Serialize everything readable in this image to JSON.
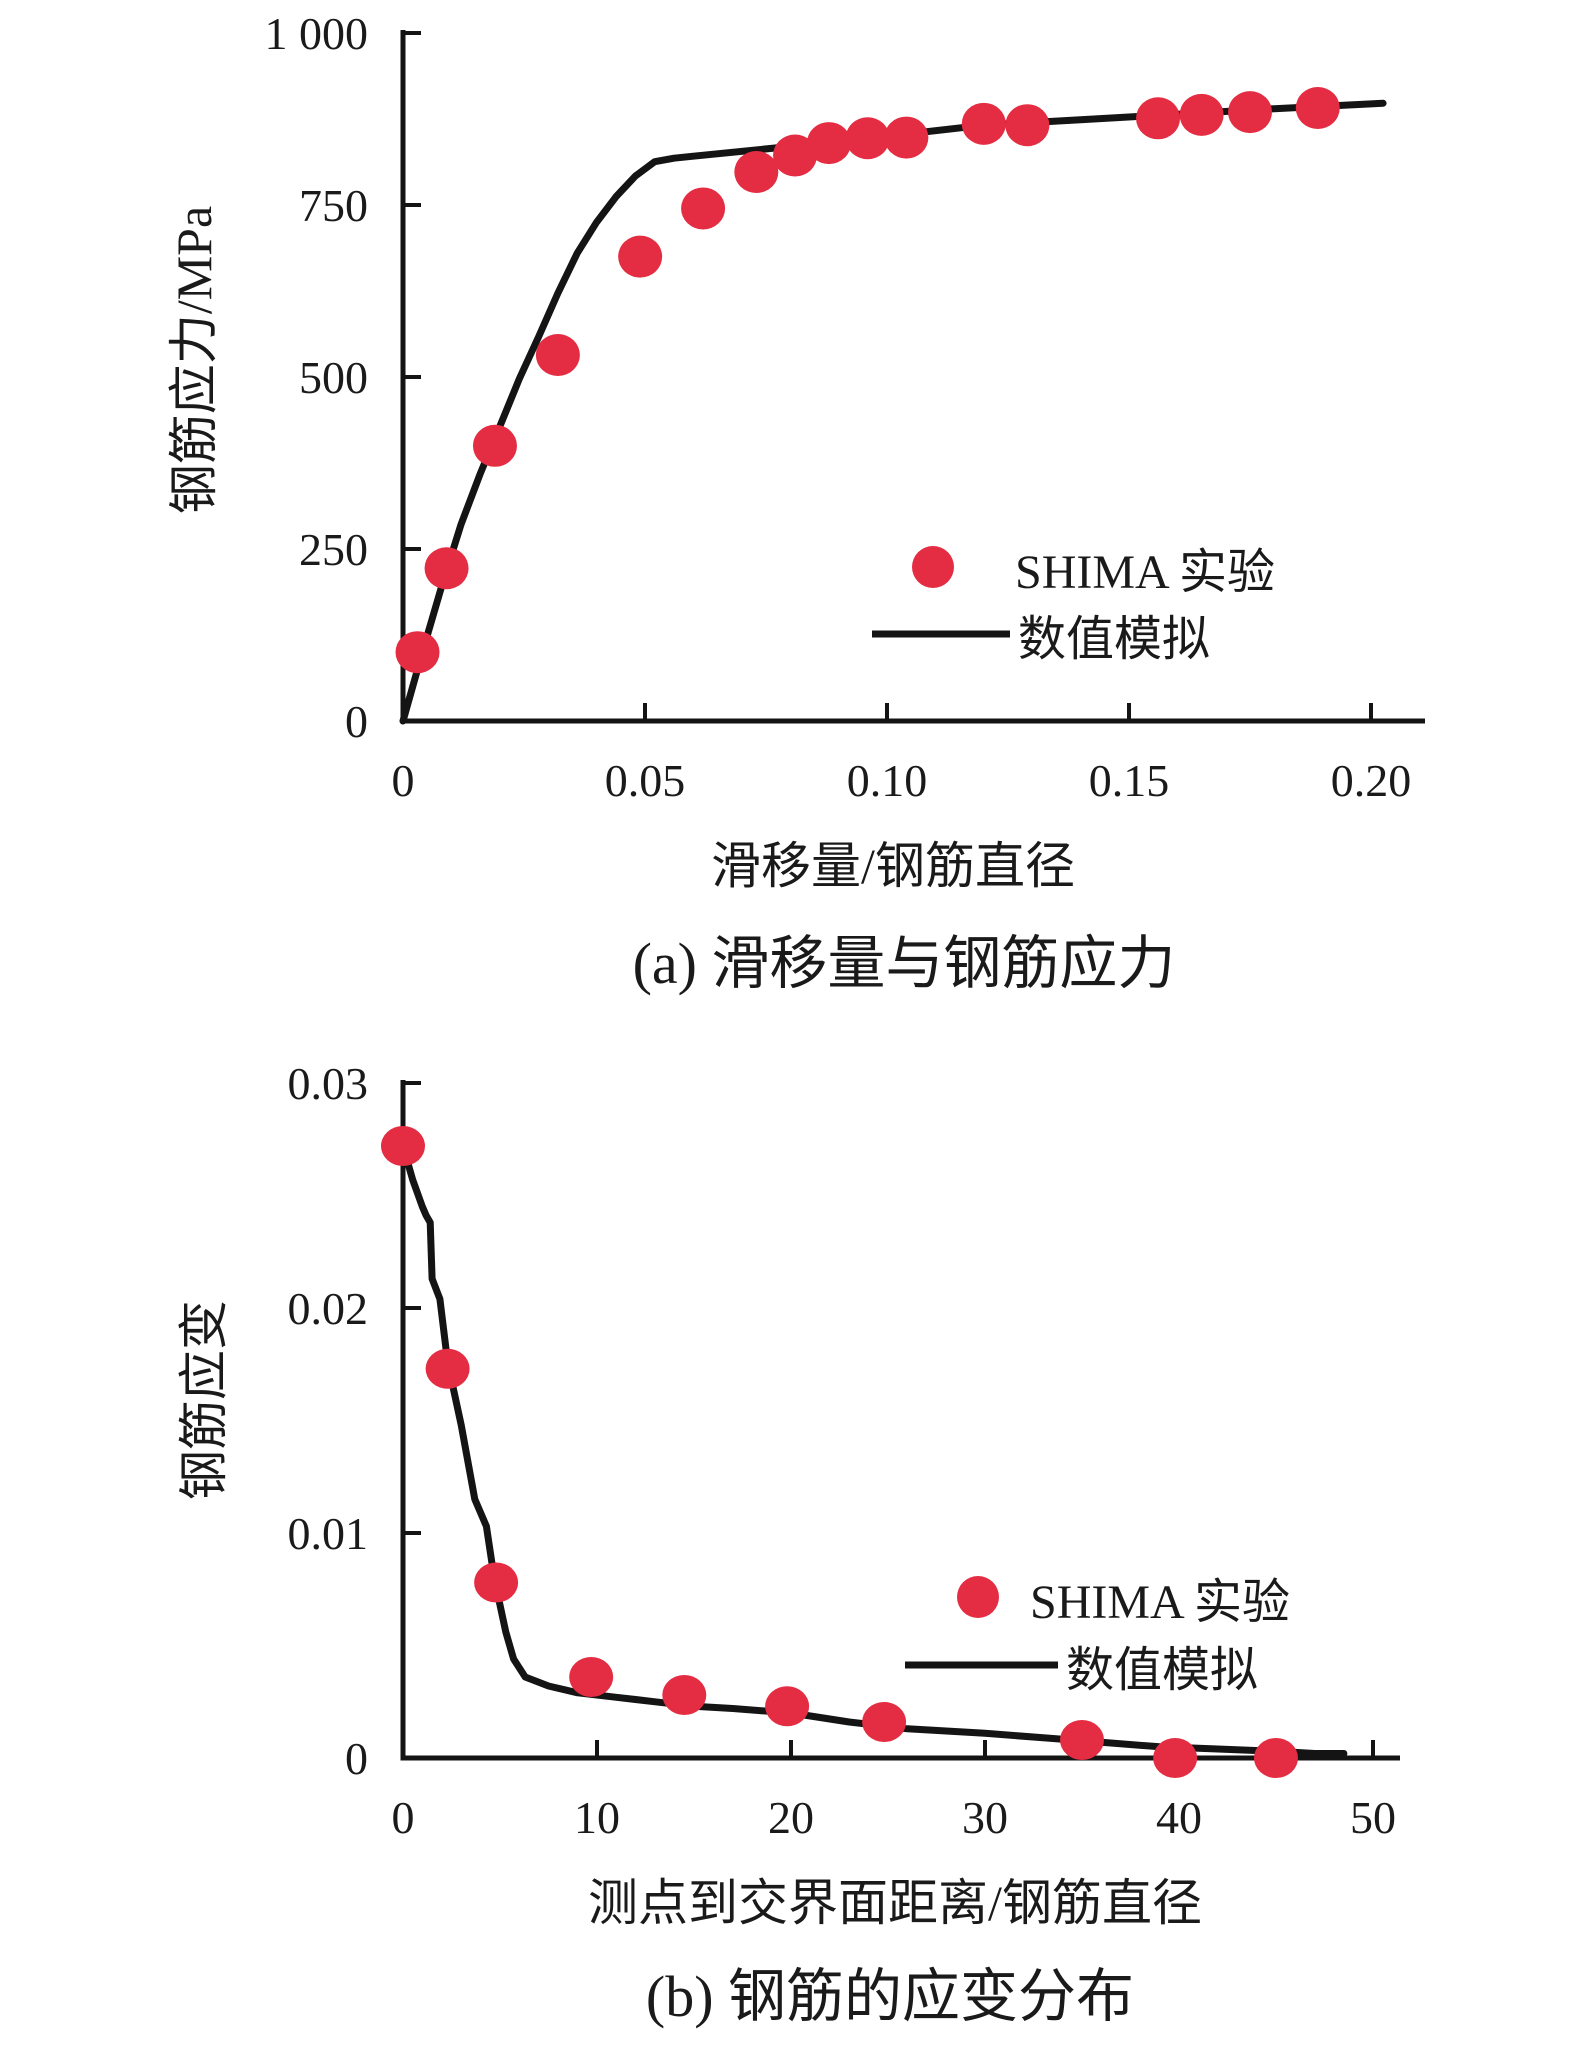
{
  "colors": {
    "marker_red": "#e42c42",
    "line_black": "#141414",
    "text": "#1a1a1a",
    "background": "#ffffff"
  },
  "chart_data": [
    {
      "type": "scatter",
      "title": "(a) 滑移量与钢筋应力",
      "xlabel": "滑移量/钢筋直径",
      "ylabel": "钢筋应力/MPa",
      "xlim": [
        0,
        0.211
      ],
      "ylim": [
        0,
        1000
      ],
      "xticks": [
        0,
        0.05,
        0.1,
        0.15,
        0.2
      ],
      "xtick_labels": [
        "0",
        "0.05",
        "0.10",
        "0.15",
        "0.20"
      ],
      "yticks": [
        0,
        250,
        500,
        750,
        1000
      ],
      "ytick_labels": [
        "0",
        "250",
        "500",
        "750",
        "1 000"
      ],
      "grid": false,
      "legend_position": "inside-lower-right",
      "legend": [
        {
          "label": "SHIMA 实验",
          "marker": "dot"
        },
        {
          "label": "数值模拟",
          "marker": "line"
        }
      ],
      "series": [
        {
          "name": "SHIMA 实验",
          "kind": "scatter",
          "points": [
            [
              0.003,
              100
            ],
            [
              0.009,
              222
            ],
            [
              0.019,
              400
            ],
            [
              0.032,
              532
            ],
            [
              0.049,
              675
            ],
            [
              0.062,
              745
            ],
            [
              0.073,
              798
            ],
            [
              0.081,
              822
            ],
            [
              0.088,
              840
            ],
            [
              0.096,
              847
            ],
            [
              0.104,
              848
            ],
            [
              0.12,
              868
            ],
            [
              0.129,
              866
            ],
            [
              0.156,
              876
            ],
            [
              0.165,
              881
            ],
            [
              0.175,
              885
            ],
            [
              0.189,
              891
            ]
          ]
        },
        {
          "name": "数值模拟",
          "kind": "line",
          "points": [
            [
              0,
              0
            ],
            [
              0.004,
              100
            ],
            [
              0.008,
              196
            ],
            [
              0.012,
              286
            ],
            [
              0.016,
              360
            ],
            [
              0.02,
              428
            ],
            [
              0.024,
              497
            ],
            [
              0.028,
              558
            ],
            [
              0.032,
              622
            ],
            [
              0.036,
              680
            ],
            [
              0.04,
              725
            ],
            [
              0.044,
              762
            ],
            [
              0.048,
              792
            ],
            [
              0.052,
              813
            ],
            [
              0.056,
              818
            ],
            [
              0.06,
              821
            ],
            [
              0.08,
              835
            ],
            [
              0.1,
              850
            ],
            [
              0.12,
              866
            ],
            [
              0.14,
              874
            ],
            [
              0.16,
              882
            ],
            [
              0.18,
              890
            ],
            [
              0.2,
              897
            ],
            [
              0.2025,
              898
            ]
          ]
        }
      ]
    },
    {
      "type": "scatter",
      "title": "(b) 钢筋的应变分布",
      "xlabel": "测点到交界面距离/钢筋直径",
      "ylabel": "钢筋应变",
      "xlim": [
        0,
        51.5
      ],
      "ylim": [
        0,
        0.03
      ],
      "xticks": [
        0,
        10,
        20,
        30,
        40,
        50
      ],
      "xtick_labels": [
        "0",
        "10",
        "20",
        "30",
        "40",
        "50"
      ],
      "yticks": [
        0,
        0.01,
        0.02,
        0.03
      ],
      "ytick_labels": [
        "0",
        "0.01",
        "0.02",
        "0.03"
      ],
      "grid": false,
      "legend_position": "inside-middle-right",
      "legend": [
        {
          "label": "SHIMA 实验",
          "marker": "dot"
        },
        {
          "label": "数值模拟",
          "marker": "line"
        }
      ],
      "series": [
        {
          "name": "SHIMA 实验",
          "kind": "scatter",
          "points": [
            [
              0,
              0.0272
            ],
            [
              2.3,
              0.0173
            ],
            [
              4.8,
              0.0078
            ],
            [
              9.7,
              0.0036
            ],
            [
              14.5,
              0.0028
            ],
            [
              19.8,
              0.0023
            ],
            [
              24.8,
              0.0016
            ],
            [
              35,
              0.0008
            ],
            [
              39.8,
              0.0
            ],
            [
              45,
              0.0
            ]
          ]
        },
        {
          "name": "数值模拟",
          "kind": "line",
          "points": [
            [
              0,
              0.0272
            ],
            [
              0.5,
              0.0257
            ],
            [
              1.0,
              0.0245
            ],
            [
              1.2,
              0.0241
            ],
            [
              1.4,
              0.0238
            ],
            [
              1.5,
              0.0213
            ],
            [
              1.9,
              0.0204
            ],
            [
              2.3,
              0.0176
            ],
            [
              3.0,
              0.0148
            ],
            [
              3.7,
              0.0115
            ],
            [
              4.3,
              0.0103
            ],
            [
              4.7,
              0.008
            ],
            [
              5.3,
              0.0056
            ],
            [
              5.7,
              0.0044
            ],
            [
              6.3,
              0.0036
            ],
            [
              7.5,
              0.0032
            ],
            [
              9.0,
              0.0029
            ],
            [
              11,
              0.0027
            ],
            [
              13,
              0.0025
            ],
            [
              15,
              0.0023
            ],
            [
              17,
              0.0022
            ],
            [
              20,
              0.002
            ],
            [
              23,
              0.0016
            ],
            [
              26,
              0.0013
            ],
            [
              30,
              0.0011
            ],
            [
              33,
              0.0009
            ],
            [
              36,
              0.0007
            ],
            [
              39,
              0.0005
            ],
            [
              42,
              0.0004
            ],
            [
              45,
              0.0003
            ],
            [
              47,
              0.0002
            ],
            [
              48.5,
              0.0002
            ]
          ]
        }
      ]
    }
  ]
}
